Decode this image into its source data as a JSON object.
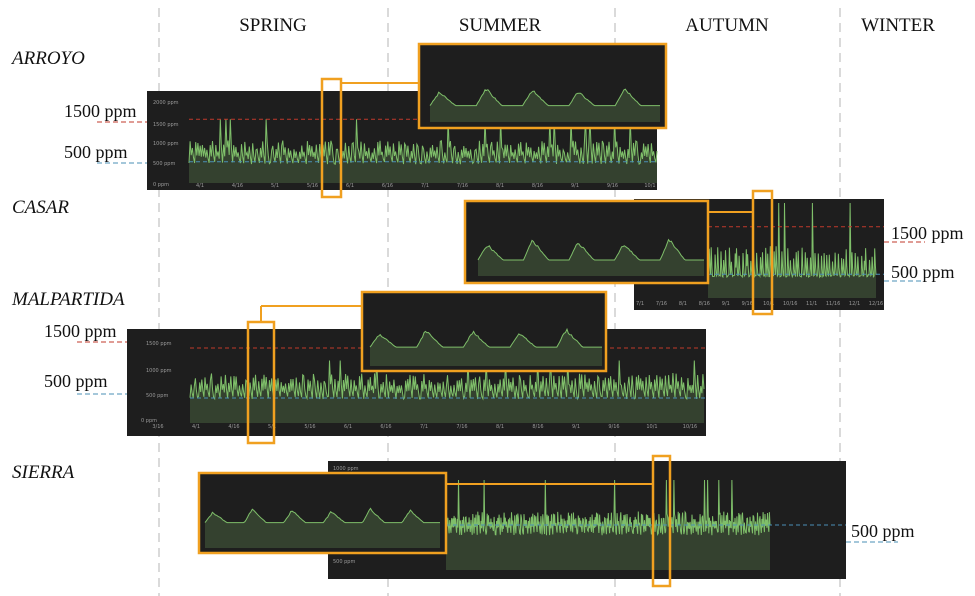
{
  "seasons": [
    "SPRING",
    "SUMMER",
    "AUTUMN",
    "WINTER"
  ],
  "ppm": {
    "high": "1500 ppm",
    "low": "500 ppm"
  },
  "colors": {
    "panel": "#1e1e1e",
    "series": "#7fbf6a",
    "fill": "#3c4e36",
    "upper_threshold": "#c0392b",
    "lower_threshold": "#4a8fb5",
    "zoom_frame": "#f0a020",
    "divider": "#b5b5b5"
  },
  "chart_data": [
    {
      "type": "area",
      "name": "ARROYO",
      "y_ticks": [
        "2000 ppm",
        "1500 ppm",
        "1000 ppm",
        "500 ppm",
        "0 ppm"
      ],
      "x_ticks": [
        "4/1",
        "4/16",
        "5/1",
        "5/16",
        "6/1",
        "6/16",
        "7/1",
        "7/16",
        "8/1",
        "8/16",
        "9/1",
        "9/16",
        "10/1"
      ],
      "thresholds": [
        "1500 ppm",
        "500 ppm"
      ],
      "ylim": [
        0,
        2000
      ],
      "baseline": 480,
      "typical_peak": 1000,
      "max_peak": 1500
    },
    {
      "type": "area",
      "name": "CASAR",
      "x_ticks": [
        "7/1",
        "7/16",
        "8/1",
        "8/16",
        "9/1",
        "9/16",
        "10/1",
        "10/16",
        "11/1",
        "11/16",
        "12/1",
        "12/16"
      ],
      "thresholds": [
        "1500 ppm",
        "500 ppm"
      ],
      "ylim": [
        0,
        2000
      ],
      "baseline": 480,
      "typical_peak": 1100,
      "max_peak": 2000
    },
    {
      "type": "area",
      "name": "MALPARTIDA",
      "y_ticks": [
        "1500 ppm",
        "1000 ppm",
        "500 ppm",
        "0 ppm"
      ],
      "x_ticks": [
        "3/16",
        "4/1",
        "4/16",
        "5/1",
        "5/16",
        "6/1",
        "6/16",
        "7/1",
        "7/16",
        "8/1",
        "8/16",
        "9/1",
        "9/16",
        "10/1",
        "10/16"
      ],
      "thresholds": [
        "1500 ppm",
        "500 ppm"
      ],
      "ylim": [
        0,
        1800
      ],
      "baseline": 520,
      "typical_peak": 1000,
      "max_peak": 1250
    },
    {
      "type": "area",
      "name": "SIERRA",
      "y_ticks": [
        "1000 ppm",
        "500 ppm"
      ],
      "thresholds": [
        "500 ppm"
      ],
      "ylim": [
        0,
        1100
      ],
      "baseline": 420,
      "typical_peak": 650,
      "max_peak": 1000
    }
  ]
}
